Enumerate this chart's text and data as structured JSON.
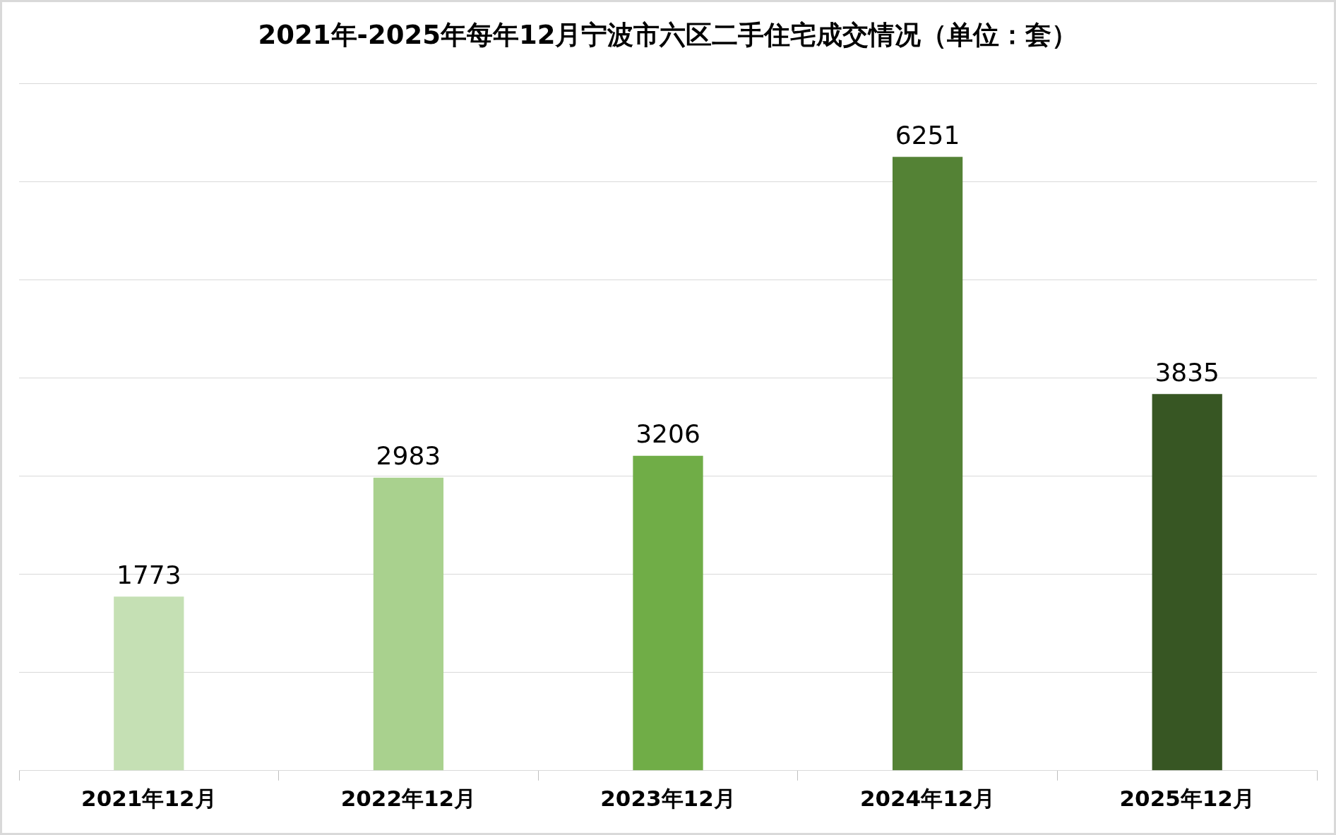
{
  "chart_data": {
    "type": "bar",
    "title": "2021年-2025年每年12月宁波市六区二手住宅成交情况（单位：套）",
    "categories": [
      "2021年12月",
      "2022年12月",
      "2023年12月",
      "2024年12月",
      "2025年12月"
    ],
    "values": [
      1773,
      2983,
      3206,
      6251,
      3835
    ],
    "colors": [
      "#c5e0b4",
      "#a9d18e",
      "#70ad47",
      "#548235",
      "#375623"
    ],
    "ylim": [
      0,
      7000
    ],
    "yticks": [
      0,
      1000,
      2000,
      3000,
      4000,
      5000,
      6000,
      7000
    ],
    "grid": "y",
    "tick_labels": "x",
    "data_labels": true,
    "legend": false
  }
}
